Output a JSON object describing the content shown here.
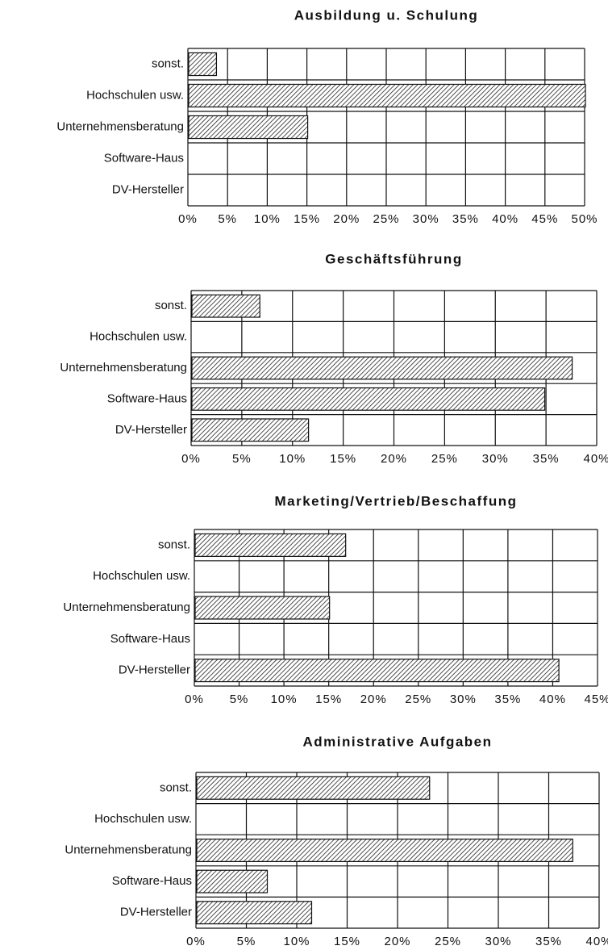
{
  "chart_data": [
    {
      "type": "barh",
      "title": "Ausbildung u. Schulung",
      "categories": [
        "sonst.",
        "Hochschulen usw.",
        "Unternehmensberatung",
        "Software-Haus",
        "DV-Hersteller"
      ],
      "values": [
        3.5,
        50,
        15,
        0,
        0
      ],
      "xlim": [
        0,
        50
      ],
      "xticks": [
        {
          "value": 0,
          "label": "0%"
        },
        {
          "value": 5,
          "label": "5%"
        },
        {
          "value": 10,
          "label": "10%"
        },
        {
          "value": 15,
          "label": "15%"
        },
        {
          "value": 20,
          "label": "20%"
        },
        {
          "value": 25,
          "label": "25%"
        },
        {
          "value": 30,
          "label": "30%"
        },
        {
          "value": 35,
          "label": "35%"
        },
        {
          "value": 40,
          "label": "40%"
        },
        {
          "value": 45,
          "label": "45%"
        },
        {
          "value": 50,
          "label": "50%"
        }
      ],
      "grid": true
    },
    {
      "type": "barh",
      "title": "Geschäftsführung",
      "categories": [
        "sonst.",
        "Hochschulen usw.",
        "Unternehmensberatung",
        "Software-Haus",
        "DV-Hersteller"
      ],
      "values": [
        6.7,
        0,
        37.5,
        34.8,
        11.5
      ],
      "xlim": [
        0,
        40
      ],
      "xticks": [
        {
          "value": 0,
          "label": "0%"
        },
        {
          "value": 5,
          "label": "5%"
        },
        {
          "value": 10,
          "label": "10%"
        },
        {
          "value": 15,
          "label": "15%"
        },
        {
          "value": 20,
          "label": "20%"
        },
        {
          "value": 25,
          "label": "25%"
        },
        {
          "value": 30,
          "label": "30%"
        },
        {
          "value": 35,
          "label": "35%"
        },
        {
          "value": 40,
          "label": "40%"
        }
      ],
      "grid": true
    },
    {
      "type": "barh",
      "title": "Marketing/Vertrieb/Beschaffung",
      "categories": [
        "sonst.",
        "Hochschulen usw.",
        "Unternehmensberatung",
        "Software-Haus",
        "DV-Hersteller"
      ],
      "values": [
        16.8,
        0,
        15,
        0,
        40.6
      ],
      "xlim": [
        0,
        45
      ],
      "xticks": [
        {
          "value": 0,
          "label": "0%"
        },
        {
          "value": 5,
          "label": "5%"
        },
        {
          "value": 10,
          "label": "10%"
        },
        {
          "value": 15,
          "label": "15%"
        },
        {
          "value": 20,
          "label": "20%"
        },
        {
          "value": 25,
          "label": "25%"
        },
        {
          "value": 30,
          "label": "30%"
        },
        {
          "value": 35,
          "label": "35%"
        },
        {
          "value": 40,
          "label": "40%"
        },
        {
          "value": 45,
          "label": "45%"
        }
      ],
      "grid": true
    },
    {
      "type": "barh",
      "title": "Administrative Aufgaben",
      "categories": [
        "sonst.",
        "Hochschulen usw.",
        "Unternehmensberatung",
        "Software-Haus",
        "DV-Hersteller"
      ],
      "values": [
        23.1,
        0,
        37.3,
        7,
        11.4
      ],
      "xlim": [
        0,
        40
      ],
      "xticks": [
        {
          "value": 0,
          "label": "0%"
        },
        {
          "value": 5,
          "label": "5%"
        },
        {
          "value": 10,
          "label": "10%"
        },
        {
          "value": 15,
          "label": "15%"
        },
        {
          "value": 20,
          "label": "20%"
        },
        {
          "value": 25,
          "label": "25%"
        },
        {
          "value": 30,
          "label": "30%"
        },
        {
          "value": 35,
          "label": "35%"
        },
        {
          "value": 40,
          "label": "40%"
        }
      ],
      "grid": true
    }
  ]
}
